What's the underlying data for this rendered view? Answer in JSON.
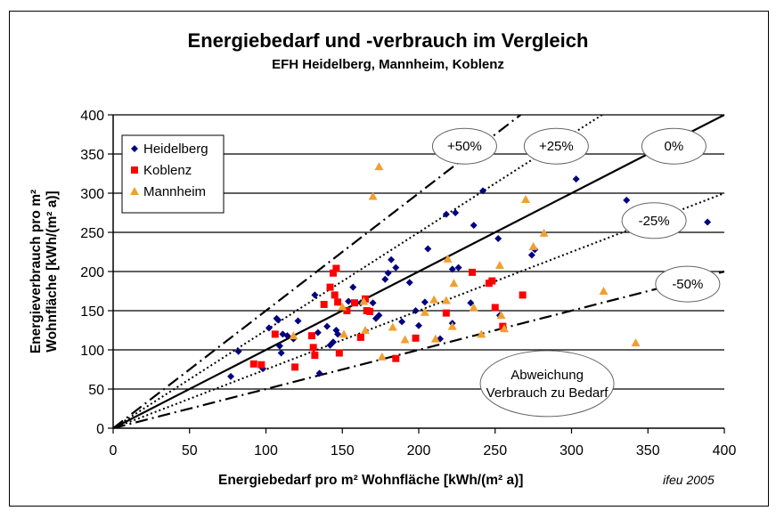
{
  "chart_data": {
    "type": "scatter",
    "title": "Energiebedarf und -verbrauch im Vergleich",
    "subtitle": "EFH Heidelberg, Mannheim, Koblenz",
    "xlabel": "Energiebedarf pro m² Wohnfläche [kWh/(m² a)]",
    "ylabel_line1": "Energieverbrauch pro m²",
    "ylabel_line2": "Wohnfläche [kWh/(m² a)]",
    "credit": "ifeu 2005",
    "xlim": [
      0,
      400
    ],
    "ylim": [
      0,
      400
    ],
    "xticks": [
      0,
      50,
      100,
      150,
      200,
      250,
      300,
      350,
      400
    ],
    "yticks": [
      0,
      50,
      100,
      150,
      200,
      250,
      300,
      350,
      400
    ],
    "grid": "horizontal",
    "legend_placement": "top-left",
    "reference_lines": [
      {
        "label": "+50%",
        "slope": 1.5,
        "style": "dash-dot"
      },
      {
        "label": "+25%",
        "slope": 1.25,
        "style": "dotted"
      },
      {
        "label": "0%",
        "slope": 1.0,
        "style": "solid"
      },
      {
        "label": "-25%",
        "slope": 0.75,
        "style": "dotted"
      },
      {
        "label": "-50%",
        "slope": 0.5,
        "style": "dash-dot"
      }
    ],
    "annotation": {
      "line1": "Abweichung",
      "line2": "Verbrauch zu Bedarf"
    },
    "series": [
      {
        "name": "Heidelberg",
        "marker": "diamond",
        "color": "#000080",
        "points": [
          [
            77,
            66
          ],
          [
            82,
            98
          ],
          [
            98,
            76
          ],
          [
            102,
            128
          ],
          [
            107,
            140
          ],
          [
            108,
            138
          ],
          [
            109,
            105
          ],
          [
            110,
            96
          ],
          [
            111,
            120
          ],
          [
            114,
            118
          ],
          [
            118,
            114
          ],
          [
            121,
            137
          ],
          [
            132,
            170
          ],
          [
            134,
            122
          ],
          [
            135,
            70
          ],
          [
            140,
            130
          ],
          [
            142,
            106
          ],
          [
            144,
            110
          ],
          [
            146,
            125
          ],
          [
            147,
            120
          ],
          [
            154,
            162
          ],
          [
            157,
            180
          ],
          [
            162,
            160
          ],
          [
            167,
            150
          ],
          [
            170,
            160
          ],
          [
            172,
            140
          ],
          [
            174,
            144
          ],
          [
            178,
            190
          ],
          [
            180,
            198
          ],
          [
            182,
            215
          ],
          [
            185,
            205
          ],
          [
            189,
            136
          ],
          [
            194,
            186
          ],
          [
            198,
            150
          ],
          [
            200,
            131
          ],
          [
            204,
            161
          ],
          [
            206,
            229
          ],
          [
            214,
            114
          ],
          [
            218,
            273
          ],
          [
            222,
            134
          ],
          [
            222,
            203
          ],
          [
            224,
            275
          ],
          [
            226,
            205
          ],
          [
            234,
            160
          ],
          [
            236,
            259
          ],
          [
            242,
            303
          ],
          [
            252,
            242
          ],
          [
            253,
            144
          ],
          [
            274,
            221
          ],
          [
            276,
            228
          ],
          [
            303,
            318
          ],
          [
            336,
            291
          ],
          [
            389,
            263
          ]
        ]
      },
      {
        "name": "Koblenz",
        "marker": "square",
        "color": "#ff0000",
        "points": [
          [
            92,
            82
          ],
          [
            97,
            81
          ],
          [
            106,
            120
          ],
          [
            119,
            78
          ],
          [
            130,
            118
          ],
          [
            131,
            103
          ],
          [
            132,
            93
          ],
          [
            138,
            158
          ],
          [
            142,
            180
          ],
          [
            144,
            198
          ],
          [
            145,
            170
          ],
          [
            146,
            204
          ],
          [
            147,
            161
          ],
          [
            148,
            96
          ],
          [
            153,
            150
          ],
          [
            158,
            160
          ],
          [
            162,
            116
          ],
          [
            165,
            165
          ],
          [
            166,
            150
          ],
          [
            168,
            149
          ],
          [
            185,
            89
          ],
          [
            198,
            115
          ],
          [
            218,
            147
          ],
          [
            235,
            199
          ],
          [
            246,
            185
          ],
          [
            248,
            188
          ],
          [
            250,
            154
          ],
          [
            255,
            130
          ],
          [
            268,
            170
          ]
        ]
      },
      {
        "name": "Mannheim",
        "marker": "triangle",
        "color": "#f0a030",
        "points": [
          [
            118,
            118
          ],
          [
            150,
            155
          ],
          [
            151,
            120
          ],
          [
            164,
            162
          ],
          [
            165,
            125
          ],
          [
            170,
            296
          ],
          [
            174,
            334
          ],
          [
            176,
            91
          ],
          [
            183,
            129
          ],
          [
            191,
            113
          ],
          [
            204,
            148
          ],
          [
            210,
            164
          ],
          [
            211,
            114
          ],
          [
            218,
            163
          ],
          [
            219,
            216
          ],
          [
            222,
            130
          ],
          [
            223,
            185
          ],
          [
            236,
            154
          ],
          [
            241,
            120
          ],
          [
            253,
            208
          ],
          [
            254,
            144
          ],
          [
            256,
            127
          ],
          [
            270,
            292
          ],
          [
            275,
            232
          ],
          [
            282,
            249
          ],
          [
            321,
            175
          ],
          [
            342,
            109
          ]
        ]
      }
    ]
  }
}
